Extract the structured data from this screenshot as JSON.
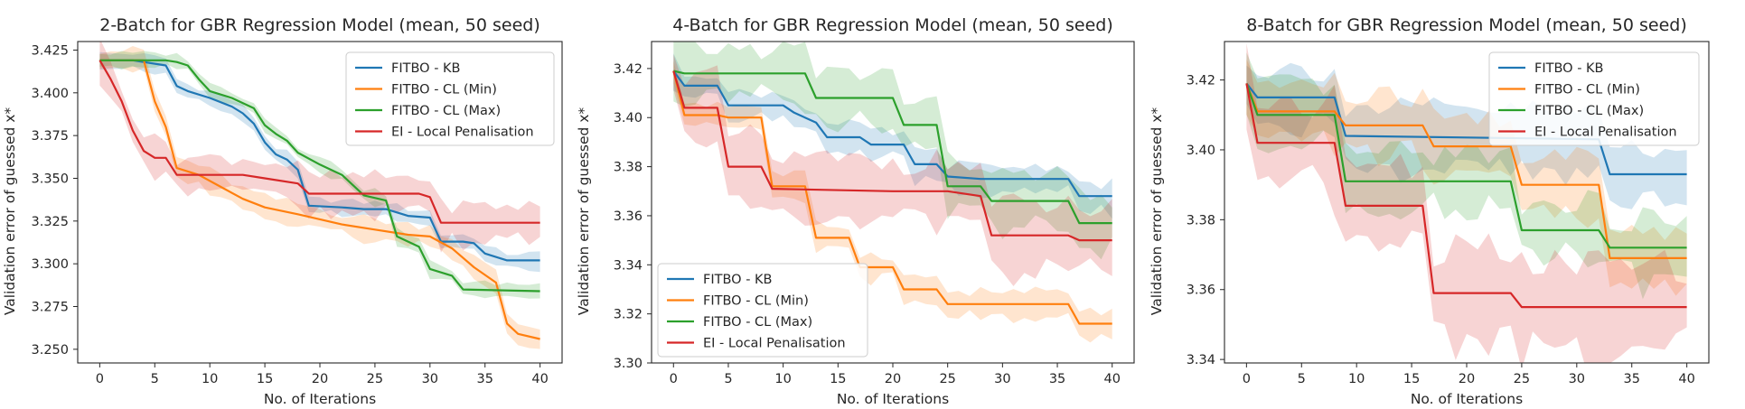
{
  "chart_data": [
    {
      "type": "line",
      "title": "2-Batch for GBR Regression Model (mean, 50 seed)",
      "xlabel": "No. of Iterations",
      "ylabel": "Validation error of guessed x*",
      "xlim": [
        -2,
        42
      ],
      "ylim": [
        3.242,
        3.43
      ],
      "xticks": [
        0,
        5,
        10,
        15,
        20,
        25,
        30,
        35,
        40
      ],
      "yticks": [
        3.25,
        3.275,
        3.3,
        3.325,
        3.35,
        3.375,
        3.4,
        3.425
      ],
      "ytick_labels": [
        "3.250",
        "3.275",
        "3.300",
        "3.325",
        "3.350",
        "3.375",
        "3.400",
        "3.425"
      ],
      "grid": false,
      "legend": "top-right",
      "series": [
        {
          "name": "FITBO - KB",
          "color": "#1f77b4",
          "band": 0.004,
          "points": [
            [
              0,
              3.419
            ],
            [
              3,
              3.419
            ],
            [
              6,
              3.416
            ],
            [
              7,
              3.404
            ],
            [
              8,
              3.401
            ],
            [
              10,
              3.397
            ],
            [
              12,
              3.392
            ],
            [
              13,
              3.388
            ],
            [
              14,
              3.382
            ],
            [
              15,
              3.371
            ],
            [
              16,
              3.364
            ],
            [
              17,
              3.361
            ],
            [
              18,
              3.355
            ],
            [
              19,
              3.334
            ],
            [
              22,
              3.333
            ],
            [
              24,
              3.332
            ],
            [
              26,
              3.332
            ],
            [
              28,
              3.328
            ],
            [
              30,
              3.327
            ],
            [
              31,
              3.313
            ],
            [
              33,
              3.313
            ],
            [
              34,
              3.312
            ],
            [
              35,
              3.306
            ],
            [
              37,
              3.302
            ],
            [
              40,
              3.302
            ]
          ]
        },
        {
          "name": "FITBO - CL (Min)",
          "color": "#ff7f0e",
          "band": 0.006,
          "points": [
            [
              0,
              3.419
            ],
            [
              4,
              3.419
            ],
            [
              5,
              3.395
            ],
            [
              6,
              3.38
            ],
            [
              7,
              3.356
            ],
            [
              9,
              3.352
            ],
            [
              11,
              3.345
            ],
            [
              13,
              3.338
            ],
            [
              15,
              3.333
            ],
            [
              18,
              3.329
            ],
            [
              20,
              3.326
            ],
            [
              22,
              3.323
            ],
            [
              25,
              3.32
            ],
            [
              28,
              3.317
            ],
            [
              30,
              3.316
            ],
            [
              32,
              3.309
            ],
            [
              34,
              3.298
            ],
            [
              36,
              3.289
            ],
            [
              37,
              3.265
            ],
            [
              38,
              3.259
            ],
            [
              40,
              3.256
            ]
          ]
        },
        {
          "name": "FITBO - CL (Max)",
          "color": "#2ca02c",
          "band": 0.004,
          "points": [
            [
              0,
              3.419
            ],
            [
              6,
              3.419
            ],
            [
              7,
              3.418
            ],
            [
              8,
              3.416
            ],
            [
              9,
              3.408
            ],
            [
              10,
              3.401
            ],
            [
              12,
              3.397
            ],
            [
              14,
              3.391
            ],
            [
              15,
              3.381
            ],
            [
              16,
              3.376
            ],
            [
              17,
              3.372
            ],
            [
              18,
              3.365
            ],
            [
              20,
              3.358
            ],
            [
              22,
              3.352
            ],
            [
              24,
              3.34
            ],
            [
              26,
              3.337
            ],
            [
              27,
              3.316
            ],
            [
              29,
              3.31
            ],
            [
              30,
              3.297
            ],
            [
              32,
              3.293
            ],
            [
              33,
              3.285
            ],
            [
              40,
              3.284
            ]
          ]
        },
        {
          "name": "EI - Local Penalisation",
          "color": "#d62728",
          "band": 0.01,
          "points": [
            [
              0,
              3.419
            ],
            [
              1,
              3.408
            ],
            [
              2,
              3.395
            ],
            [
              3,
              3.378
            ],
            [
              4,
              3.366
            ],
            [
              5,
              3.362
            ],
            [
              6,
              3.362
            ],
            [
              7,
              3.352
            ],
            [
              13,
              3.352
            ],
            [
              15,
              3.35
            ],
            [
              18,
              3.347
            ],
            [
              19,
              3.341
            ],
            [
              29,
              3.341
            ],
            [
              30,
              3.339
            ],
            [
              31,
              3.324
            ],
            [
              40,
              3.324
            ]
          ]
        }
      ]
    },
    {
      "type": "line",
      "title": "4-Batch for GBR Regression Model (mean, 50 seed)",
      "xlabel": "No. of Iterations",
      "ylabel": "Validation error of guessed x*",
      "xlim": [
        -2,
        42
      ],
      "ylim": [
        3.3,
        3.431
      ],
      "xticks": [
        0,
        5,
        10,
        15,
        20,
        25,
        30,
        35,
        40
      ],
      "yticks": [
        3.3,
        3.32,
        3.34,
        3.36,
        3.38,
        3.4,
        3.42
      ],
      "ytick_labels": [
        "3.30",
        "3.32",
        "3.34",
        "3.36",
        "3.38",
        "3.40",
        "3.42"
      ],
      "grid": false,
      "legend": "lower-left",
      "series": [
        {
          "name": "FITBO - KB",
          "color": "#1f77b4",
          "band": 0.005,
          "points": [
            [
              0,
              3.419
            ],
            [
              1,
              3.413
            ],
            [
              4,
              3.413
            ],
            [
              5,
              3.405
            ],
            [
              10,
              3.405
            ],
            [
              11,
              3.402
            ],
            [
              13,
              3.398
            ],
            [
              14,
              3.392
            ],
            [
              17,
              3.392
            ],
            [
              18,
              3.389
            ],
            [
              21,
              3.389
            ],
            [
              22,
              3.381
            ],
            [
              24,
              3.381
            ],
            [
              25,
              3.376
            ],
            [
              28,
              3.375
            ],
            [
              36,
              3.375
            ],
            [
              37,
              3.368
            ],
            [
              40,
              3.368
            ]
          ]
        },
        {
          "name": "FITBO - CL (Min)",
          "color": "#ff7f0e",
          "band": 0.005,
          "points": [
            [
              0,
              3.419
            ],
            [
              1,
              3.401
            ],
            [
              4,
              3.401
            ],
            [
              5,
              3.4
            ],
            [
              8,
              3.4
            ],
            [
              9,
              3.372
            ],
            [
              12,
              3.372
            ],
            [
              13,
              3.351
            ],
            [
              16,
              3.351
            ],
            [
              17,
              3.339
            ],
            [
              20,
              3.339
            ],
            [
              21,
              3.33
            ],
            [
              24,
              3.33
            ],
            [
              25,
              3.324
            ],
            [
              36,
              3.324
            ],
            [
              37,
              3.316
            ],
            [
              40,
              3.316
            ]
          ]
        },
        {
          "name": "FITBO - CL (Max)",
          "color": "#2ca02c",
          "band": 0.01,
          "points": [
            [
              0,
              3.419
            ],
            [
              1,
              3.418
            ],
            [
              12,
              3.418
            ],
            [
              13,
              3.408
            ],
            [
              20,
              3.408
            ],
            [
              21,
              3.397
            ],
            [
              24,
              3.397
            ],
            [
              25,
              3.372
            ],
            [
              28,
              3.372
            ],
            [
              29,
              3.366
            ],
            [
              36,
              3.366
            ],
            [
              37,
              3.357
            ],
            [
              40,
              3.357
            ]
          ]
        },
        {
          "name": "EI - Local Penalisation",
          "color": "#d62728",
          "band": 0.012,
          "points": [
            [
              0,
              3.419
            ],
            [
              1,
              3.404
            ],
            [
              4,
              3.404
            ],
            [
              5,
              3.38
            ],
            [
              8,
              3.38
            ],
            [
              9,
              3.371
            ],
            [
              20,
              3.37
            ],
            [
              25,
              3.37
            ],
            [
              28,
              3.368
            ],
            [
              29,
              3.352
            ],
            [
              36,
              3.352
            ],
            [
              37,
              3.35
            ],
            [
              40,
              3.35
            ]
          ]
        }
      ]
    },
    {
      "type": "line",
      "title": "8-Batch for GBR Regression Model (mean, 50 seed)",
      "xlabel": "No. of Iterations",
      "ylabel": "Validation error of guessed x*",
      "xlim": [
        -2,
        42
      ],
      "ylim": [
        3.339,
        3.431
      ],
      "xticks": [
        0,
        5,
        10,
        15,
        20,
        25,
        30,
        35,
        40
      ],
      "yticks": [
        3.34,
        3.36,
        3.38,
        3.4,
        3.42
      ],
      "ytick_labels": [
        "3.34",
        "3.36",
        "3.38",
        "3.40",
        "3.42"
      ],
      "grid": false,
      "legend": "top-right",
      "series": [
        {
          "name": "FITBO - KB",
          "color": "#1f77b4",
          "band": 0.008,
          "points": [
            [
              0,
              3.419
            ],
            [
              1,
              3.415
            ],
            [
              8,
              3.415
            ],
            [
              9,
              3.404
            ],
            [
              32,
              3.403
            ],
            [
              33,
              3.393
            ],
            [
              40,
              3.393
            ]
          ]
        },
        {
          "name": "FITBO - CL (Min)",
          "color": "#ff7f0e",
          "band": 0.008,
          "points": [
            [
              0,
              3.419
            ],
            [
              1,
              3.411
            ],
            [
              8,
              3.411
            ],
            [
              9,
              3.407
            ],
            [
              16,
              3.407
            ],
            [
              17,
              3.401
            ],
            [
              24,
              3.401
            ],
            [
              25,
              3.39
            ],
            [
              32,
              3.39
            ],
            [
              33,
              3.369
            ],
            [
              40,
              3.369
            ]
          ]
        },
        {
          "name": "FITBO - CL (Max)",
          "color": "#2ca02c",
          "band": 0.008,
          "points": [
            [
              0,
              3.419
            ],
            [
              1,
              3.41
            ],
            [
              8,
              3.41
            ],
            [
              9,
              3.391
            ],
            [
              24,
              3.391
            ],
            [
              25,
              3.377
            ],
            [
              32,
              3.377
            ],
            [
              33,
              3.372
            ],
            [
              40,
              3.372
            ]
          ]
        },
        {
          "name": "EI - Local Penalisation",
          "color": "#d62728",
          "band": 0.012,
          "points": [
            [
              0,
              3.419
            ],
            [
              1,
              3.402
            ],
            [
              8,
              3.402
            ],
            [
              9,
              3.384
            ],
            [
              16,
              3.384
            ],
            [
              17,
              3.359
            ],
            [
              24,
              3.359
            ],
            [
              25,
              3.355
            ],
            [
              40,
              3.355
            ]
          ]
        }
      ]
    }
  ]
}
